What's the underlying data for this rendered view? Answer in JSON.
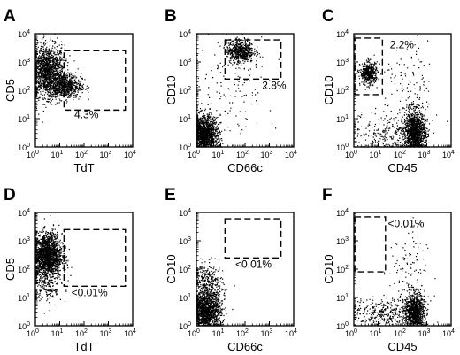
{
  "chart_data": [
    {
      "type": "scatter",
      "panel_label": "A",
      "xlabel": "TdT",
      "ylabel": "CD5",
      "xscale": "log",
      "yscale": "log",
      "xlim": [
        1,
        10000
      ],
      "ylim": [
        1,
        10000
      ],
      "x_ticks": [
        1,
        10,
        100,
        1000,
        10000
      ],
      "y_ticks": [
        1,
        10,
        100,
        1000,
        10000
      ],
      "gate": {
        "x": [
          15,
          5000
        ],
        "y": [
          20,
          2500
        ],
        "label": "4.3%",
        "label_at": {
          "x": 40,
          "y": 14
        }
      },
      "populations": [
        {
          "cx": 3,
          "cy": 500,
          "sx": 0.35,
          "sy": 0.45,
          "n": 1400
        },
        {
          "cx": 15,
          "cy": 150,
          "sx": 0.35,
          "sy": 0.22,
          "n": 700
        }
      ]
    },
    {
      "type": "scatter",
      "panel_label": "B",
      "xlabel": "CD66c",
      "ylabel": "CD10",
      "xscale": "log",
      "yscale": "log",
      "xlim": [
        1,
        10000
      ],
      "ylim": [
        1,
        10000
      ],
      "x_ticks": [
        1,
        10,
        100,
        1000,
        10000
      ],
      "y_ticks": [
        1,
        10,
        100,
        1000,
        10000
      ],
      "gate": {
        "x": [
          15,
          3000
        ],
        "y": [
          250,
          6000
        ],
        "label": "2.8%",
        "label_at": {
          "x": 500,
          "y": 150
        }
      },
      "populations": [
        {
          "cx": 60,
          "cy": 2500,
          "sx": 0.28,
          "sy": 0.2,
          "n": 600
        },
        {
          "cx": 2,
          "cy": 2.5,
          "sx": 0.28,
          "sy": 0.35,
          "n": 1600
        },
        {
          "cx": 30,
          "cy": 200,
          "sx": 0.9,
          "sy": 0.9,
          "n": 140
        }
      ]
    },
    {
      "type": "scatter",
      "panel_label": "C",
      "xlabel": "CD45",
      "ylabel": "CD10",
      "xscale": "log",
      "yscale": "log",
      "xlim": [
        1,
        10000
      ],
      "ylim": [
        1,
        10000
      ],
      "x_ticks": [
        1,
        10,
        100,
        1000,
        10000
      ],
      "y_ticks": [
        1,
        10,
        100,
        1000,
        10000
      ],
      "gate": {
        "x": [
          1.1,
          15
        ],
        "y": [
          70,
          7000
        ],
        "label": "2.2%",
        "label_at": {
          "x": 30,
          "y": 4000
        }
      },
      "populations": [
        {
          "cx": 4,
          "cy": 400,
          "sx": 0.18,
          "sy": 0.2,
          "n": 450
        },
        {
          "cx": 300,
          "cy": 3,
          "sx": 0.22,
          "sy": 0.4,
          "n": 1400
        },
        {
          "cx": 30,
          "cy": 3,
          "sx": 0.8,
          "sy": 0.4,
          "n": 300
        },
        {
          "cx": 200,
          "cy": 100,
          "sx": 0.5,
          "sy": 0.8,
          "n": 120
        }
      ]
    },
    {
      "type": "scatter",
      "panel_label": "D",
      "xlabel": "TdT",
      "ylabel": "CD5",
      "xscale": "log",
      "yscale": "log",
      "xlim": [
        1,
        10000
      ],
      "ylim": [
        1,
        10000
      ],
      "x_ticks": [
        1,
        10,
        100,
        1000,
        10000
      ],
      "y_ticks": [
        1,
        10,
        100,
        1000,
        10000
      ],
      "gate": {
        "x": [
          15,
          5000
        ],
        "y": [
          25,
          2500
        ],
        "label": "<0.01%",
        "label_at": {
          "x": 30,
          "y": 15
        }
      },
      "populations": [
        {
          "cx": 3,
          "cy": 300,
          "sx": 0.3,
          "sy": 0.4,
          "n": 1800
        },
        {
          "cx": 3,
          "cy": 20,
          "sx": 0.3,
          "sy": 0.3,
          "n": 150
        }
      ]
    },
    {
      "type": "scatter",
      "panel_label": "E",
      "xlabel": "CD66c",
      "ylabel": "CD10",
      "xscale": "log",
      "yscale": "log",
      "xlim": [
        1,
        10000
      ],
      "ylim": [
        1,
        10000
      ],
      "x_ticks": [
        1,
        10,
        100,
        1000,
        10000
      ],
      "y_ticks": [
        1,
        10,
        100,
        1000,
        10000
      ],
      "gate": {
        "x": [
          15,
          3000
        ],
        "y": [
          250,
          6000
        ],
        "label": "<0.01%",
        "label_at": {
          "x": 40,
          "y": 150
        }
      },
      "populations": [
        {
          "cx": 2.5,
          "cy": 3,
          "sx": 0.3,
          "sy": 0.35,
          "n": 1400
        },
        {
          "cx": 3,
          "cy": 25,
          "sx": 0.3,
          "sy": 0.4,
          "n": 400
        }
      ]
    },
    {
      "type": "scatter",
      "panel_label": "F",
      "xlabel": "CD45",
      "ylabel": "CD10",
      "xscale": "log",
      "yscale": "log",
      "xlim": [
        1,
        10000
      ],
      "ylim": [
        1,
        10000
      ],
      "x_ticks": [
        1,
        10,
        100,
        1000,
        10000
      ],
      "y_ticks": [
        1,
        10,
        100,
        1000,
        10000
      ],
      "gate": {
        "x": [
          1.1,
          20
        ],
        "y": [
          80,
          7000
        ],
        "label": "<0.01%",
        "label_at": {
          "x": 25,
          "y": 4000
        }
      },
      "populations": [
        {
          "cx": 300,
          "cy": 3,
          "sx": 0.2,
          "sy": 0.35,
          "n": 1100
        },
        {
          "cx": 20,
          "cy": 3,
          "sx": 0.7,
          "sy": 0.25,
          "n": 350
        },
        {
          "cx": 150,
          "cy": 80,
          "sx": 0.4,
          "sy": 0.8,
          "n": 100
        }
      ]
    }
  ]
}
